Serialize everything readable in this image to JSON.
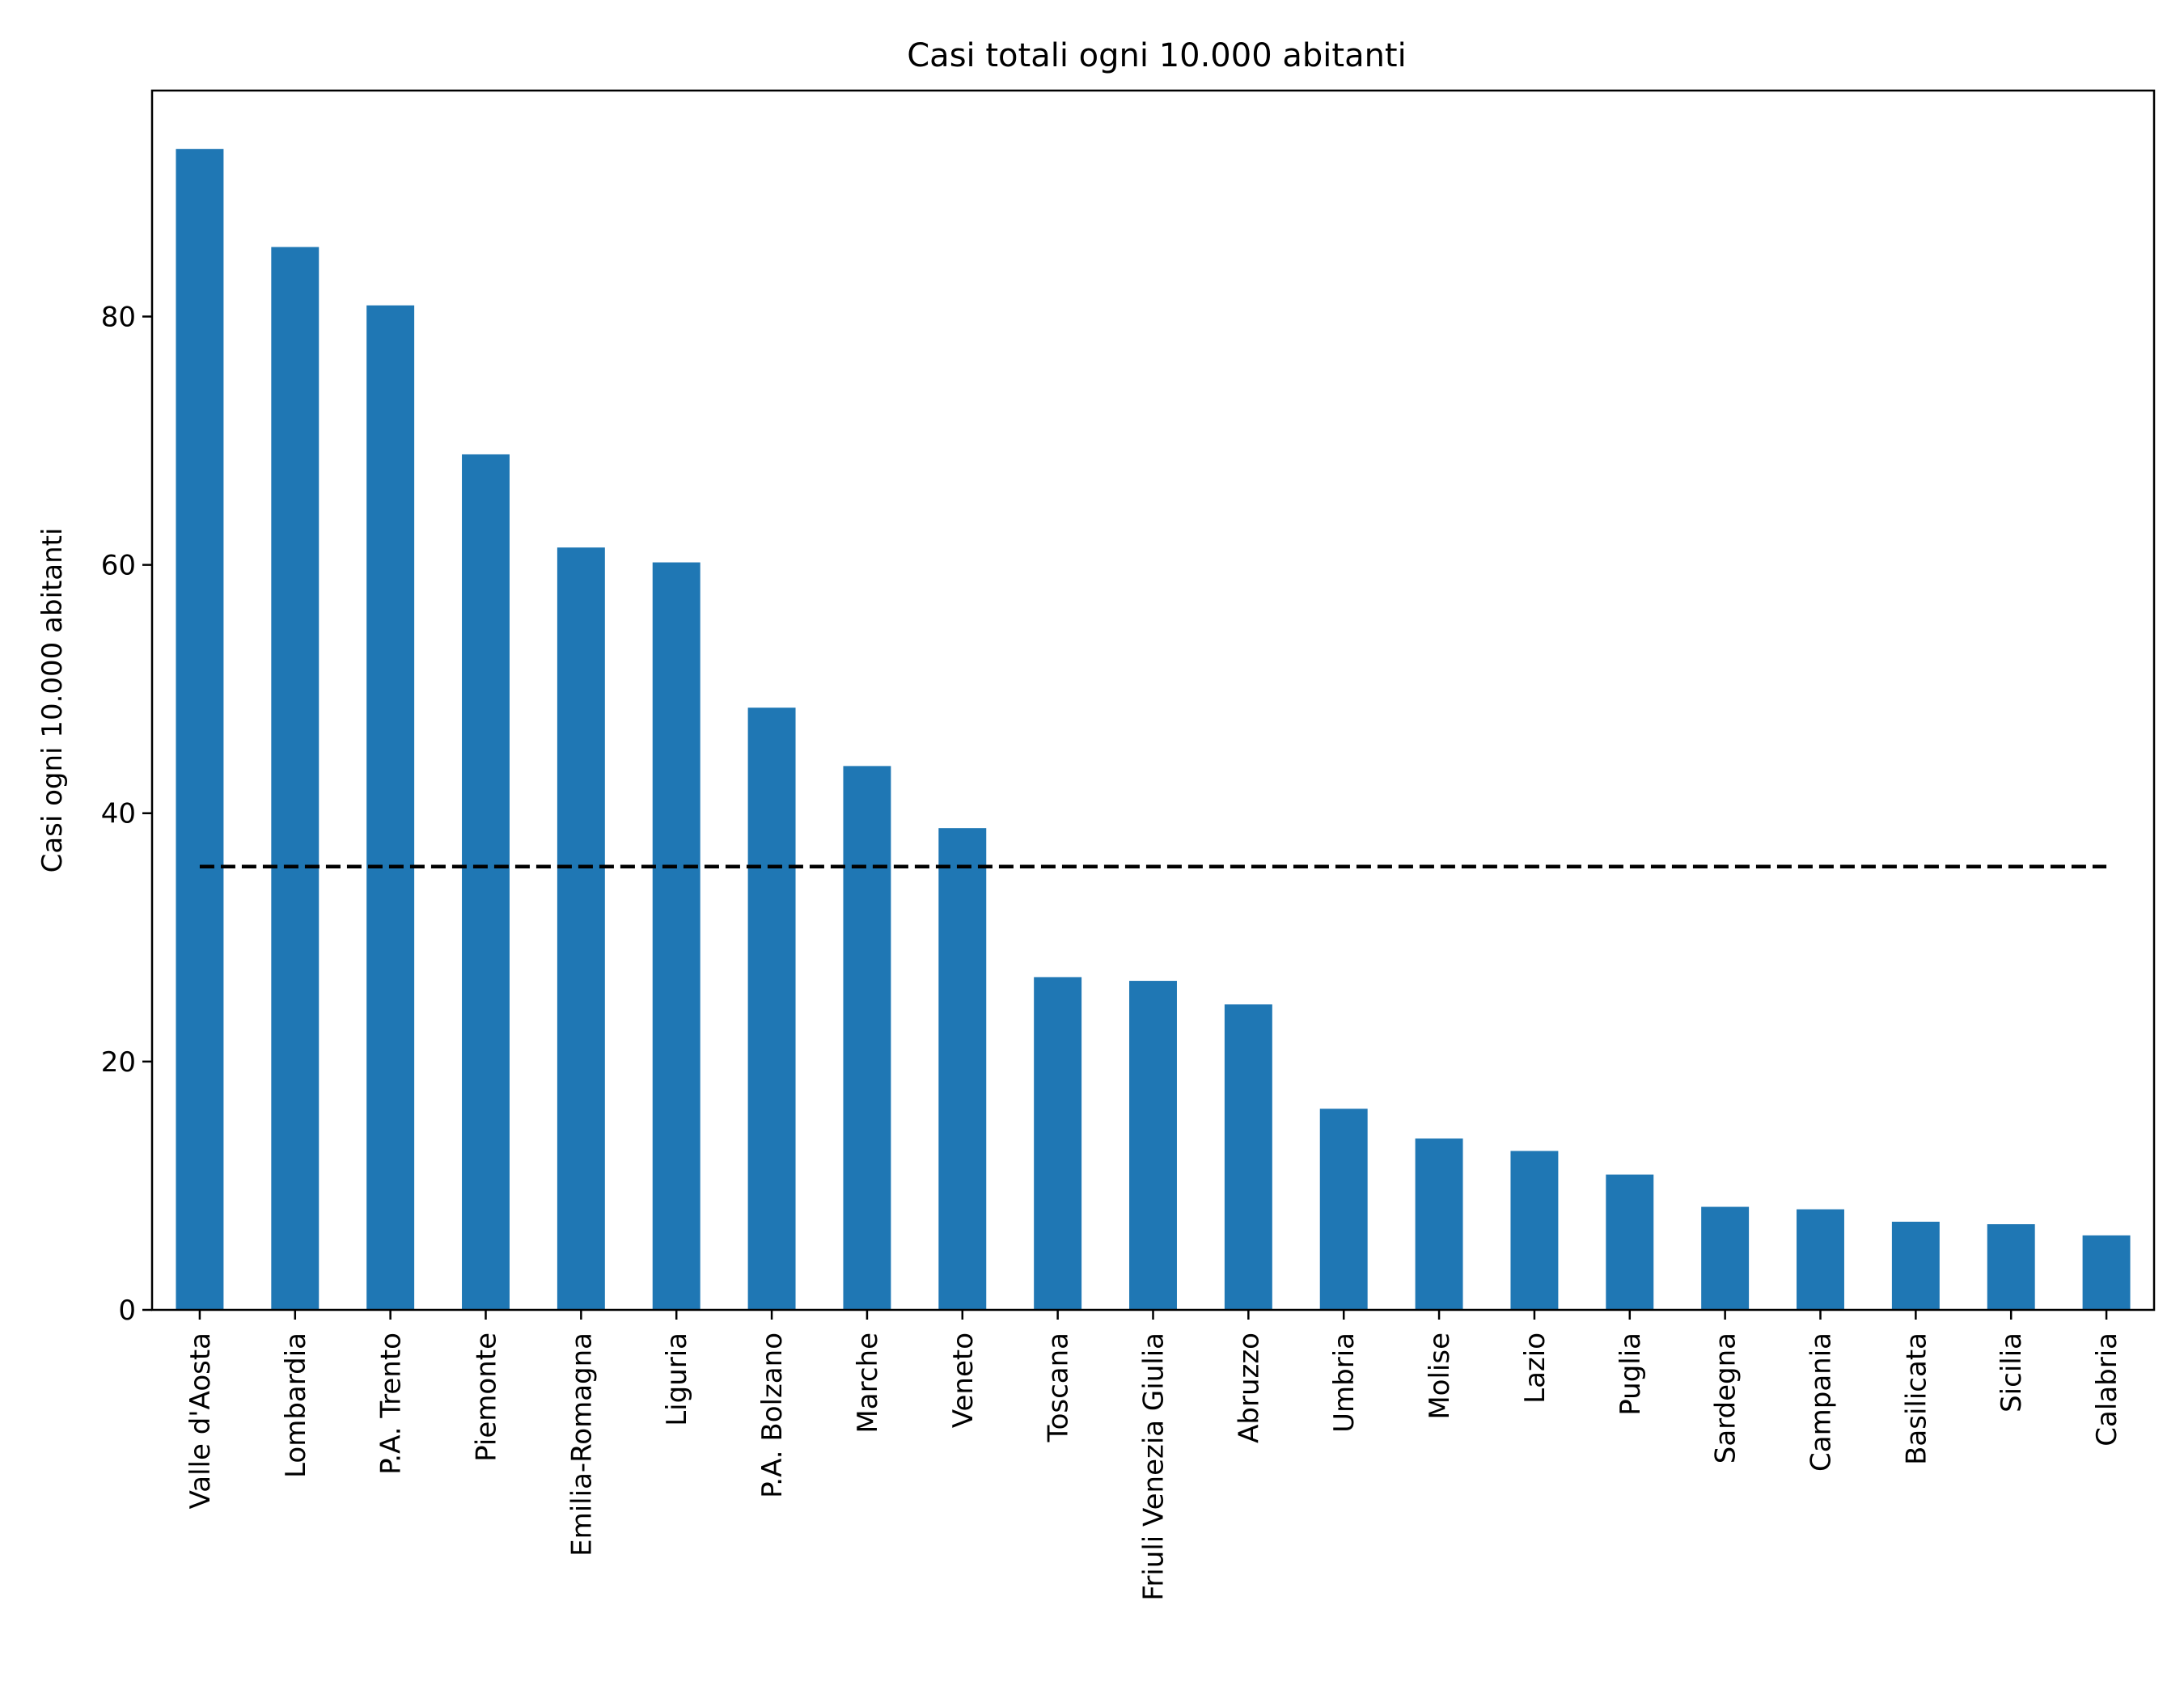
{
  "chart_data": {
    "type": "bar",
    "title": "Casi totali ogni 10.000 abitanti",
    "xlabel": "",
    "ylabel": "Casi ogni 10.000 abitanti",
    "categories": [
      "Valle d'Aosta",
      "Lombardia",
      "P.A. Trento",
      "Piemonte",
      "Emilia-Romagna",
      "Liguria",
      "P.A. Bolzano",
      "Marche",
      "Veneto",
      "Toscana",
      "Friuli Venezia Giulia",
      "Abruzzo",
      "Umbria",
      "Molise",
      "Lazio",
      "Puglia",
      "Sardegna",
      "Campania",
      "Basilicata",
      "Sicilia",
      "Calabria"
    ],
    "values": [
      93.5,
      85.6,
      80.9,
      68.9,
      61.4,
      60.2,
      48.5,
      43.8,
      38.8,
      26.8,
      26.5,
      24.6,
      16.2,
      13.8,
      12.8,
      10.9,
      8.3,
      8.1,
      7.1,
      6.9,
      6.0
    ],
    "ylim": [
      0,
      98.2
    ],
    "yticks": [
      0,
      20,
      40,
      60,
      80
    ],
    "grid": false,
    "reference_line": {
      "value": 35.7,
      "style": "dashed",
      "color": "#000000"
    },
    "bar_color": "#1f77b4"
  }
}
